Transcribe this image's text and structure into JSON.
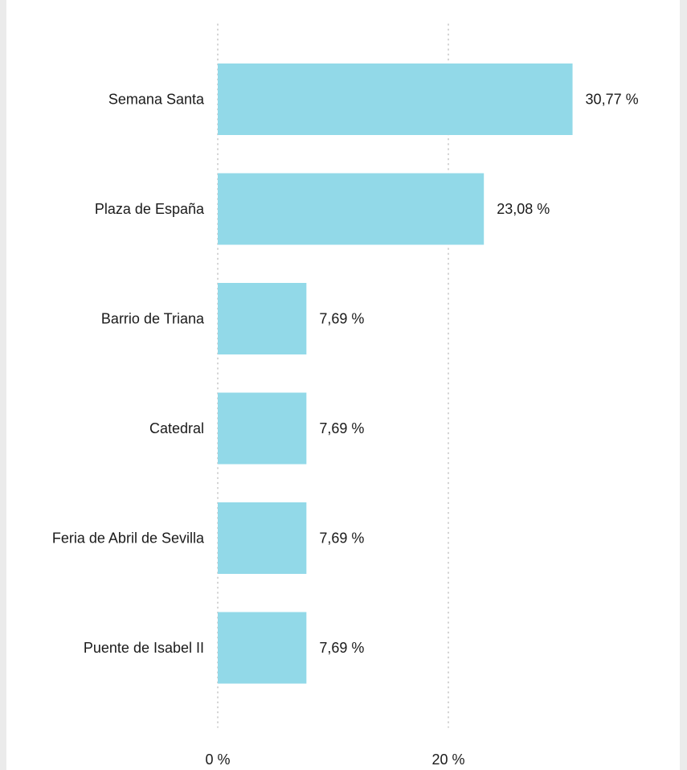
{
  "chart_data": {
    "type": "bar",
    "orientation": "horizontal",
    "categories": [
      "Semana Santa",
      "Plaza de España",
      "Barrio de Triana",
      "Catedral",
      "Feria de Abril de Sevilla",
      "Puente de Isabel II"
    ],
    "values": [
      30.77,
      23.08,
      7.69,
      7.69,
      7.69,
      7.69
    ],
    "value_labels": [
      "30,77 %",
      "23,08 %",
      "7,69 %",
      "7,69 %",
      "7,69 %",
      "7,69 %"
    ],
    "xticks": [
      0,
      20
    ],
    "xtick_labels": [
      "0 %",
      "20 %"
    ],
    "title": "",
    "xlabel": "",
    "ylabel": "",
    "xlim": [
      0,
      40
    ],
    "grid": "vertical dotted",
    "colors": {
      "bar": "#92d9e8",
      "grid": "#b4b4b4",
      "text": "#1a1a1a",
      "background": "#ffffff",
      "page_background": "#ebebeb"
    }
  }
}
